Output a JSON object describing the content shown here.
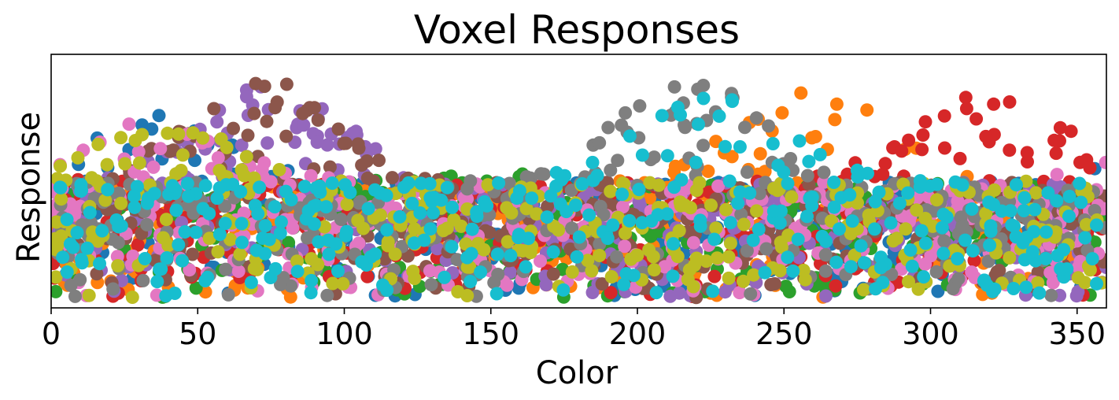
{
  "chart_data": {
    "type": "scatter",
    "title": "Voxel Responses",
    "xlabel": "Color",
    "ylabel": "Response",
    "xlim": [
      0,
      360
    ],
    "ylim": [
      0,
      1.05
    ],
    "x_ticks": [
      "0",
      "50",
      "100",
      "150",
      "200",
      "250",
      "300",
      "350"
    ],
    "y_ticks": [],
    "grid": false,
    "legend": "none",
    "series": [
      {
        "color": "#1f77b4",
        "peak_color": 40,
        "peak_response": 0.8
      },
      {
        "color": "#ff7f0e",
        "peak_color": 260,
        "peak_response": 0.93
      },
      {
        "color": "#2ca02c",
        "peak_color": 140,
        "peak_response": 0.55
      },
      {
        "color": "#d62728",
        "peak_color": 320,
        "peak_response": 0.9
      },
      {
        "color": "#9467bd",
        "peak_color": 75,
        "peak_response": 0.92
      },
      {
        "color": "#8c564b",
        "peak_color": 72,
        "peak_response": 0.95
      },
      {
        "color": "#e377c2",
        "peak_color": 35,
        "peak_response": 0.78
      },
      {
        "color": "#7f7f7f",
        "peak_color": 220,
        "peak_response": 0.96
      },
      {
        "color": "#bcbd22",
        "peak_color": 40,
        "peak_response": 0.75
      },
      {
        "color": "#17becf",
        "peak_color": 225,
        "peak_response": 0.9
      }
    ]
  }
}
